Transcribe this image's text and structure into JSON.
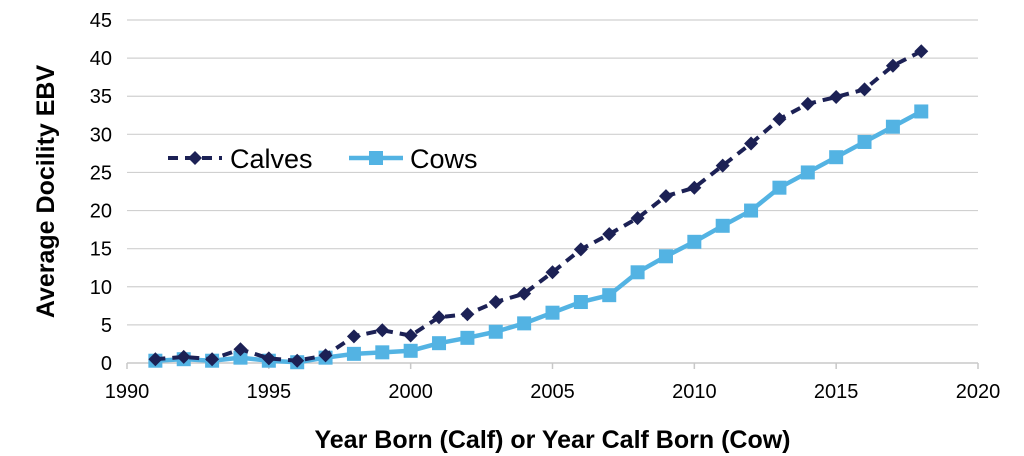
{
  "chart_data": {
    "type": "line",
    "xlabel": "Year Born (Calf) or Year Calf Born (Cow)",
    "ylabel": "Average Docility EBV",
    "xlim": [
      1990,
      2020
    ],
    "ylim": [
      0,
      45
    ],
    "xticks": [
      1990,
      1995,
      2000,
      2005,
      2010,
      2015,
      2020
    ],
    "yticks": [
      0,
      5,
      10,
      15,
      20,
      25,
      30,
      35,
      40,
      45
    ],
    "grid": true,
    "legend_position": "middle-left",
    "x": [
      1991,
      1992,
      1993,
      1994,
      1995,
      1996,
      1997,
      1998,
      1999,
      2000,
      2001,
      2002,
      2003,
      2004,
      2005,
      2006,
      2007,
      2008,
      2009,
      2010,
      2011,
      2012,
      2013,
      2014,
      2015,
      2016,
      2017,
      2018
    ],
    "series": [
      {
        "name": "Calves",
        "color": "#1c2155",
        "line_style": "dashed",
        "marker": "diamond",
        "values": [
          0.5,
          0.8,
          0.5,
          1.8,
          0.6,
          0.3,
          1.0,
          3.5,
          4.3,
          3.6,
          6.0,
          6.4,
          8.0,
          9.1,
          11.9,
          14.9,
          16.9,
          19.0,
          21.9,
          23.0,
          25.9,
          28.8,
          32.0,
          34.0,
          34.9,
          35.9,
          39.0,
          40.9
        ]
      },
      {
        "name": "Cows",
        "color": "#53b3e3",
        "line_style": "solid",
        "marker": "square",
        "values": [
          0.3,
          0.5,
          0.3,
          0.7,
          0.3,
          0.1,
          0.7,
          1.2,
          1.4,
          1.6,
          2.6,
          3.3,
          4.1,
          5.2,
          6.6,
          8.0,
          8.9,
          11.9,
          14.0,
          15.9,
          18.0,
          20.0,
          23.0,
          25.0,
          27.0,
          29.0,
          31.0,
          33.0
        ]
      }
    ]
  }
}
